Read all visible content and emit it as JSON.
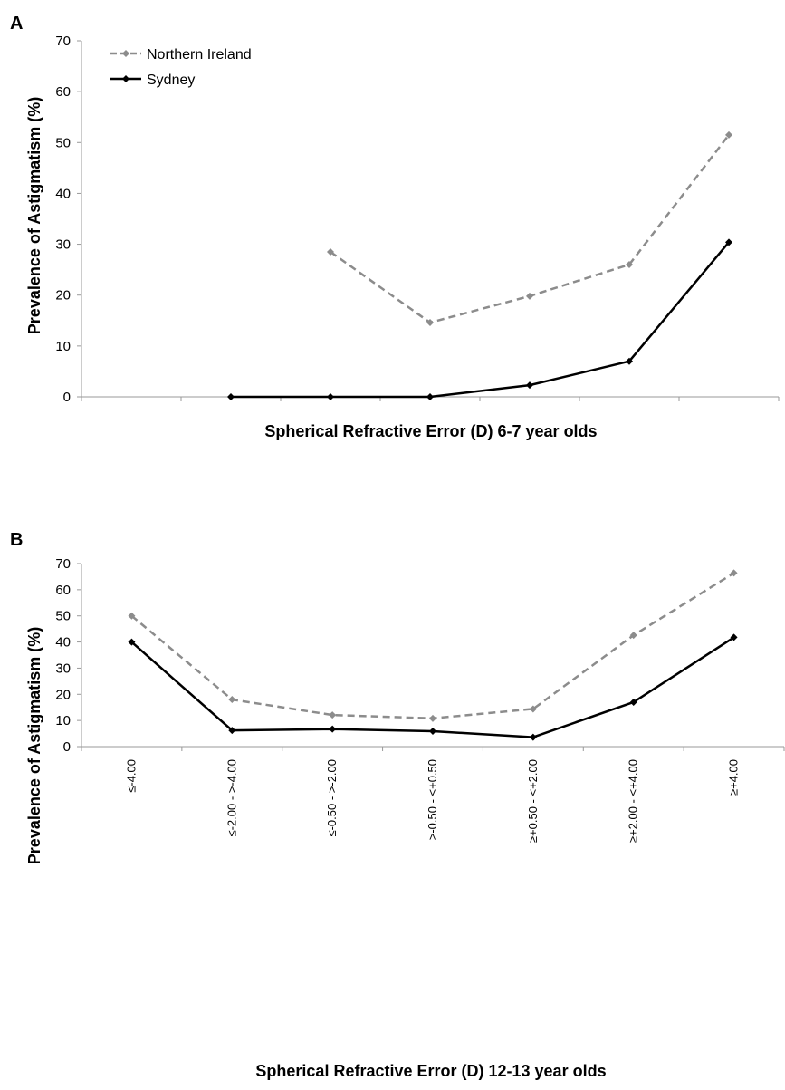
{
  "chart_data": [
    {
      "type": "line",
      "panel": "A",
      "xlabel": "Spherical Refractive Error (D) 6-7 year olds",
      "ylabel": "Prevalence of Astigmatism (%)",
      "ylim": [
        0,
        70
      ],
      "yticks": [
        "0",
        "10",
        "20",
        "30",
        "40",
        "50",
        "60",
        "70"
      ],
      "categories": [
        "≤-4.00",
        "≤-2.00 - >-4.00",
        "≤-0.50 - >-2.00",
        ">-0.50 - <+0.50",
        "≥+0.50 - <+2.00",
        "≥+2.00 - <+4.00",
        "≥+4.00"
      ],
      "show_category_labels": false,
      "grid": false,
      "legend": {
        "position": "top-left"
      },
      "series": [
        {
          "name": "Northern Ireland",
          "color": "#8c8c8c",
          "dashed": true,
          "marker": "diamond",
          "values": [
            null,
            null,
            28.5,
            14.6,
            19.8,
            26.0,
            51.5
          ]
        },
        {
          "name": "Sydney",
          "color": "#000000",
          "dashed": false,
          "marker": "diamond",
          "values": [
            null,
            0.0,
            0.0,
            0.0,
            2.3,
            7.0,
            30.4
          ]
        }
      ]
    },
    {
      "type": "line",
      "panel": "B",
      "xlabel": "Spherical Refractive Error (D) 12-13 year olds",
      "ylabel": "Prevalence of Astigmatism (%)",
      "ylim": [
        0,
        70
      ],
      "yticks": [
        "0",
        "10",
        "20",
        "30",
        "40",
        "50",
        "60",
        "70"
      ],
      "categories": [
        "≤-4.00",
        "≤-2.00 - >-4.00",
        "≤-0.50 - >-2.00",
        ">-0.50 - <+0.50",
        "≥+0.50 - <+2.00",
        "≥+2.00 - <+4.00",
        "≥+4.00"
      ],
      "show_category_labels": true,
      "grid": false,
      "series": [
        {
          "name": "Northern Ireland",
          "color": "#8c8c8c",
          "dashed": true,
          "marker": "diamond",
          "values": [
            50.0,
            18.0,
            12.1,
            10.8,
            14.4,
            42.6,
            66.4
          ]
        },
        {
          "name": "Sydney",
          "color": "#000000",
          "dashed": false,
          "marker": "diamond",
          "values": [
            40.0,
            6.2,
            6.7,
            5.9,
            3.6,
            17.0,
            41.8
          ]
        }
      ]
    }
  ]
}
